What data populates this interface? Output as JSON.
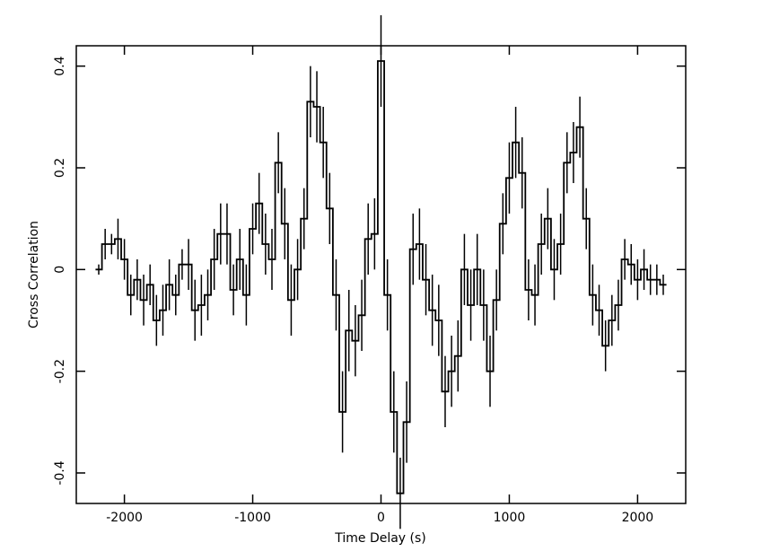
{
  "chart_data": {
    "type": "step",
    "xlabel": "Time Delay (s)",
    "ylabel": "Cross Correlation",
    "xlim": [
      -2375,
      2375
    ],
    "ylim": [
      -0.46,
      0.44
    ],
    "xticks": [
      -2000,
      -1000,
      0,
      1000,
      2000
    ],
    "yticks": [
      -0.4,
      -0.2,
      0,
      0.2,
      0.4
    ],
    "color": "#000000",
    "x": [
      -2200,
      -2150,
      -2100,
      -2050,
      -2000,
      -1950,
      -1900,
      -1850,
      -1800,
      -1750,
      -1700,
      -1650,
      -1600,
      -1550,
      -1500,
      -1450,
      -1400,
      -1350,
      -1300,
      -1250,
      -1200,
      -1150,
      -1100,
      -1050,
      -1000,
      -950,
      -900,
      -850,
      -800,
      -750,
      -700,
      -650,
      -600,
      -550,
      -500,
      -450,
      -400,
      -350,
      -300,
      -250,
      -200,
      -150,
      -100,
      -50,
      0,
      50,
      100,
      150,
      200,
      250,
      300,
      350,
      400,
      450,
      500,
      550,
      600,
      650,
      700,
      750,
      800,
      850,
      900,
      950,
      1000,
      1050,
      1100,
      1150,
      1200,
      1250,
      1300,
      1350,
      1400,
      1450,
      1500,
      1550,
      1600,
      1650,
      1700,
      1750,
      1800,
      1850,
      1900,
      1950,
      2000,
      2050,
      2100,
      2150,
      2200
    ],
    "values": [
      0,
      0.05,
      0.05,
      0.06,
      0.02,
      -0.05,
      -0.02,
      -0.06,
      -0.03,
      -0.1,
      -0.08,
      -0.03,
      -0.05,
      0.01,
      0.01,
      -0.08,
      -0.07,
      -0.05,
      0.02,
      0.07,
      0.07,
      -0.04,
      0.02,
      -0.05,
      0.08,
      0.13,
      0.05,
      0.02,
      0.21,
      0.09,
      -0.06,
      0,
      0.1,
      0.33,
      0.32,
      0.25,
      0.12,
      -0.05,
      -0.28,
      -0.12,
      -0.14,
      -0.09,
      0.06,
      0.07,
      0.41,
      -0.05,
      -0.28,
      -0.44,
      -0.3,
      0.04,
      0.05,
      -0.02,
      -0.08,
      -0.1,
      -0.24,
      -0.2,
      -0.17,
      0,
      -0.07,
      0,
      -0.07,
      -0.2,
      -0.06,
      0.09,
      0.18,
      0.25,
      0.19,
      -0.04,
      -0.05,
      0.05,
      0.1,
      0,
      0.05,
      0.21,
      0.23,
      0.28,
      0.1,
      -0.05,
      -0.08,
      -0.15,
      -0.1,
      -0.07,
      0.02,
      0.01,
      -0.02,
      0,
      -0.02,
      -0.02,
      -0.03
    ],
    "errors": [
      0.01,
      0.03,
      0.02,
      0.04,
      0.04,
      0.04,
      0.04,
      0.05,
      0.04,
      0.05,
      0.05,
      0.05,
      0.04,
      0.03,
      0.05,
      0.06,
      0.06,
      0.05,
      0.06,
      0.06,
      0.06,
      0.05,
      0.06,
      0.06,
      0.05,
      0.06,
      0.06,
      0.06,
      0.06,
      0.07,
      0.07,
      0.06,
      0.06,
      0.07,
      0.07,
      0.07,
      0.07,
      0.07,
      0.08,
      0.08,
      0.07,
      0.07,
      0.07,
      0.07,
      0.09,
      0.07,
      0.08,
      0.07,
      0.08,
      0.07,
      0.07,
      0.07,
      0.07,
      0.07,
      0.07,
      0.07,
      0.07,
      0.07,
      0.07,
      0.07,
      0.07,
      0.07,
      0.06,
      0.06,
      0.07,
      0.07,
      0.07,
      0.06,
      0.06,
      0.06,
      0.06,
      0.06,
      0.06,
      0.06,
      0.06,
      0.06,
      0.06,
      0.06,
      0.05,
      0.05,
      0.05,
      0.05,
      0.04,
      0.04,
      0.04,
      0.04,
      0.03,
      0.03,
      0.02
    ]
  }
}
